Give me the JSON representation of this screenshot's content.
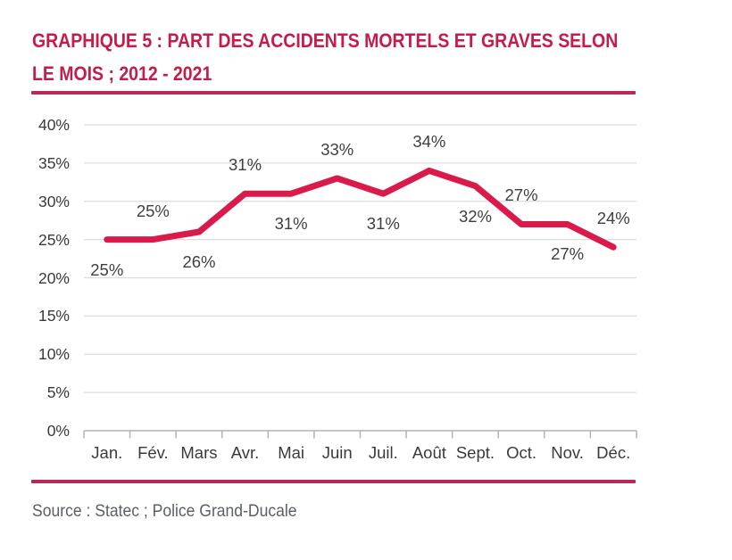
{
  "header": {
    "title_line1": "GRAPHIQUE 5 : PART DES ACCIDENTS MORTELS ET GRAVES SELON",
    "title_line2": "LE MOIS ; 2012 - 2021"
  },
  "chart_data": {
    "type": "line",
    "title": "GRAPHIQUE 5 : PART DES ACCIDENTS MORTELS ET GRAVES SELON LE MOIS ; 2012 - 2021",
    "categories": [
      "Jan.",
      "Fév.",
      "Mars",
      "Avr.",
      "Mai",
      "Juin",
      "Juil.",
      "Août",
      "Sept.",
      "Oct.",
      "Nov.",
      "Déc."
    ],
    "values": [
      25,
      25,
      26,
      31,
      31,
      33,
      31,
      34,
      32,
      27,
      27,
      24
    ],
    "data_labels": [
      "25%",
      "25%",
      "26%",
      "31%",
      "31%",
      "33%",
      "31%",
      "34%",
      "32%",
      "27%",
      "27%",
      "24%"
    ],
    "label_positions": [
      "below",
      "above",
      "below",
      "above",
      "below",
      "above",
      "below",
      "above",
      "below",
      "above",
      "below",
      "above"
    ],
    "yticks": [
      "0%",
      "5%",
      "10%",
      "15%",
      "20%",
      "25%",
      "30%",
      "35%",
      "40%"
    ],
    "ytick_values": [
      0,
      5,
      10,
      15,
      20,
      25,
      30,
      35,
      40
    ],
    "ylim": [
      0,
      40
    ],
    "xlabel": "",
    "ylabel": "",
    "grid": true,
    "legend": "none",
    "colors": {
      "line": "#DA1A4B",
      "grid": "#DCDCDC",
      "axis": "#B3B3B3",
      "tick_text": "#3A3A3A",
      "data_label_text": "#3F3F3F",
      "accent": "#C41C4C"
    }
  },
  "footer": {
    "source": "Source : Statec ; Police Grand-Ducale"
  }
}
